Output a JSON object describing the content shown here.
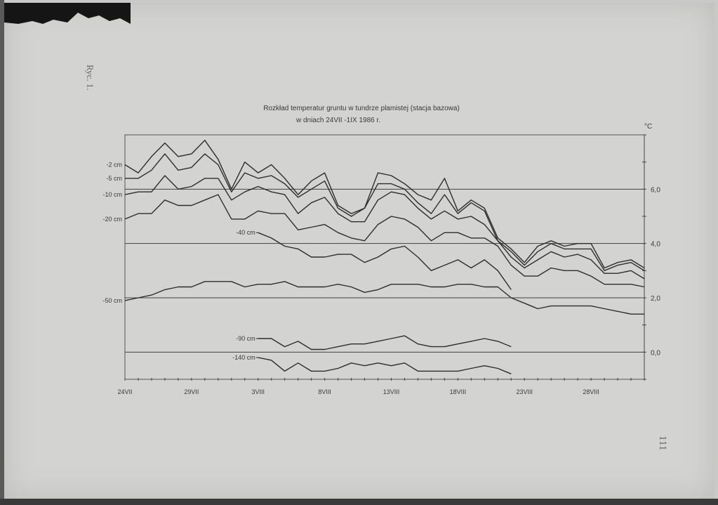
{
  "page": {
    "figure_label": "Ryc. 1.",
    "page_number": "111"
  },
  "chart_data": {
    "type": "line",
    "title": "Rozkład temperatur gruntu w tundrze plamistej (stacja bazowa)",
    "subtitle": "w dniach 24VII -1IX 1986 r.",
    "ylabel": "°C",
    "ylim": [
      -1.0,
      8.0
    ],
    "y_ticks": [
      0.0,
      2.0,
      4.0,
      6.0
    ],
    "y_tick_labels": [
      "0,0",
      "2,0",
      "4,0",
      "6,0"
    ],
    "reference_lines": [
      0.0,
      2.0,
      4.0,
      6.0
    ],
    "x_range": [
      0,
      39
    ],
    "x_ticks": [
      0,
      5,
      10,
      15,
      20,
      25,
      30,
      35
    ],
    "x_tick_labels": [
      "24VII",
      "29VII",
      "3VIII",
      "8VIII",
      "13VIII",
      "18VIII",
      "23VIII",
      "28VIII"
    ],
    "grid": false,
    "series": [
      {
        "name": "-2 cm",
        "x": [
          0,
          1,
          2,
          3,
          4,
          5,
          6,
          7,
          8,
          9,
          10,
          11,
          12,
          13,
          14,
          15,
          16,
          17,
          18,
          19,
          20,
          21,
          22,
          23,
          24,
          25,
          26,
          27,
          28,
          29,
          30,
          31,
          32,
          33,
          34,
          35,
          36,
          37,
          38,
          39
        ],
        "values": [
          6.9,
          6.6,
          7.2,
          7.7,
          7.2,
          7.3,
          7.8,
          7.1,
          6.0,
          7.0,
          6.6,
          6.9,
          6.4,
          5.8,
          6.3,
          6.6,
          5.4,
          5.1,
          5.3,
          6.6,
          6.5,
          6.2,
          5.8,
          5.6,
          6.4,
          5.2,
          5.6,
          5.3,
          4.2,
          3.8,
          3.3,
          3.9,
          4.1,
          3.9,
          4.0,
          4.0,
          3.1,
          3.3,
          3.4,
          3.1
        ]
      },
      {
        "name": "-5 cm",
        "x": [
          0,
          1,
          2,
          3,
          4,
          5,
          6,
          7,
          8,
          9,
          10,
          11,
          12,
          13,
          14,
          15,
          16,
          17,
          18,
          19,
          20,
          21,
          22,
          23,
          24,
          25,
          26,
          27,
          28,
          29,
          30,
          31,
          32,
          33,
          34,
          35,
          36,
          37,
          38,
          39
        ],
        "values": [
          6.4,
          6.4,
          6.7,
          7.3,
          6.7,
          6.8,
          7.3,
          6.9,
          5.9,
          6.6,
          6.4,
          6.5,
          6.2,
          5.7,
          6.0,
          6.3,
          5.3,
          5.0,
          5.3,
          6.2,
          6.2,
          6.0,
          5.5,
          5.1,
          5.8,
          5.1,
          5.5,
          5.2,
          4.1,
          3.7,
          3.2,
          3.7,
          4.0,
          3.8,
          3.8,
          3.8,
          3.0,
          3.2,
          3.3,
          3.0
        ]
      },
      {
        "name": "-10 cm",
        "x": [
          0,
          1,
          2,
          3,
          4,
          5,
          6,
          7,
          8,
          9,
          10,
          11,
          12,
          13,
          14,
          15,
          16,
          17,
          18,
          19,
          20,
          21,
          22,
          23,
          24,
          25,
          26,
          27,
          28,
          29,
          30,
          31,
          32,
          33,
          34,
          35,
          36,
          37,
          38,
          39
        ],
        "values": [
          5.8,
          5.9,
          5.9,
          6.5,
          6.0,
          6.1,
          6.4,
          6.4,
          5.6,
          5.9,
          6.1,
          5.9,
          5.8,
          5.1,
          5.5,
          5.7,
          5.1,
          4.8,
          4.8,
          5.6,
          5.9,
          5.8,
          5.3,
          4.9,
          5.2,
          4.9,
          5.0,
          4.7,
          4.1,
          3.5,
          3.1,
          3.4,
          3.7,
          3.5,
          3.6,
          3.4,
          2.9,
          2.9,
          3.0,
          2.7
        ]
      },
      {
        "name": "-20 cm",
        "x": [
          0,
          1,
          2,
          3,
          4,
          5,
          6,
          7,
          8,
          9,
          10,
          11,
          12,
          13,
          14,
          15,
          16,
          17,
          18,
          19,
          20,
          21,
          22,
          23,
          24,
          25,
          26,
          27,
          28,
          29,
          30,
          31,
          32,
          33,
          34,
          35,
          36,
          37,
          38,
          39
        ],
        "values": [
          4.9,
          5.1,
          5.1,
          5.6,
          5.4,
          5.4,
          5.6,
          5.8,
          4.9,
          4.9,
          5.2,
          5.1,
          5.1,
          4.5,
          4.6,
          4.7,
          4.4,
          4.2,
          4.1,
          4.7,
          5.0,
          4.9,
          4.6,
          4.1,
          4.4,
          4.4,
          4.2,
          4.2,
          3.9,
          3.2,
          2.8,
          2.8,
          3.1,
          3.0,
          3.0,
          2.8,
          2.5,
          2.5,
          2.5,
          2.4
        ]
      },
      {
        "name": "-40 cm",
        "x": [
          10,
          11,
          12,
          13,
          14,
          15,
          16,
          17,
          18,
          19,
          20,
          21,
          22,
          23,
          24,
          25,
          26,
          27,
          28,
          29
        ],
        "values": [
          4.4,
          4.2,
          3.9,
          3.8,
          3.5,
          3.5,
          3.6,
          3.6,
          3.3,
          3.5,
          3.8,
          3.9,
          3.5,
          3.0,
          3.2,
          3.4,
          3.1,
          3.4,
          3.0,
          2.3
        ]
      },
      {
        "name": "-50 cm",
        "x": [
          0,
          1,
          2,
          3,
          4,
          5,
          6,
          7,
          8,
          9,
          10,
          11,
          12,
          13,
          14,
          15,
          16,
          17,
          18,
          19,
          20,
          21,
          22,
          23,
          24,
          25,
          26,
          27,
          28,
          29,
          30,
          31,
          32,
          33,
          34,
          35,
          36,
          37,
          38,
          39
        ],
        "values": [
          1.9,
          2.0,
          2.1,
          2.3,
          2.4,
          2.4,
          2.6,
          2.6,
          2.6,
          2.4,
          2.5,
          2.5,
          2.6,
          2.4,
          2.4,
          2.4,
          2.5,
          2.4,
          2.2,
          2.3,
          2.5,
          2.5,
          2.5,
          2.4,
          2.4,
          2.5,
          2.5,
          2.4,
          2.4,
          2.0,
          1.8,
          1.6,
          1.7,
          1.7,
          1.7,
          1.7,
          1.6,
          1.5,
          1.4,
          1.4
        ]
      },
      {
        "name": "-90 cm",
        "x": [
          10,
          11,
          12,
          13,
          14,
          15,
          16,
          17,
          18,
          19,
          20,
          21,
          22,
          23,
          24,
          25,
          26,
          27,
          28,
          29
        ],
        "values": [
          0.5,
          0.5,
          0.2,
          0.4,
          0.1,
          0.1,
          0.2,
          0.3,
          0.3,
          0.4,
          0.5,
          0.6,
          0.3,
          0.2,
          0.2,
          0.3,
          0.4,
          0.5,
          0.4,
          0.2
        ]
      },
      {
        "name": "-140 cm",
        "x": [
          10,
          11,
          12,
          13,
          14,
          15,
          16,
          17,
          18,
          19,
          20,
          21,
          22,
          23,
          24,
          25,
          26,
          27,
          28,
          29
        ],
        "values": [
          -0.2,
          -0.3,
          -0.7,
          -0.4,
          -0.7,
          -0.7,
          -0.6,
          -0.4,
          -0.5,
          -0.4,
          -0.5,
          -0.4,
          -0.7,
          -0.7,
          -0.7,
          -0.7,
          -0.6,
          -0.5,
          -0.6,
          -0.8
        ]
      }
    ]
  }
}
